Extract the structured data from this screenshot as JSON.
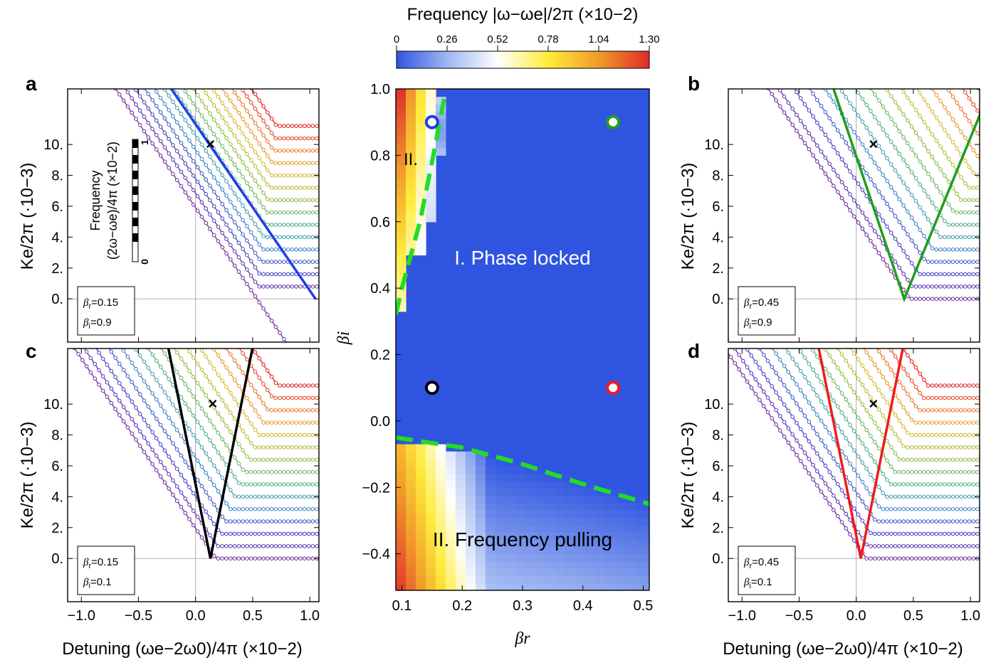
{
  "colorbar": {
    "title": "Frequency |ω−ωe|/2π (×10−2)",
    "ticks": [
      "0",
      "0.26",
      "0.52",
      "0.78",
      "1.04",
      "1.30"
    ],
    "range": [
      0,
      1.3
    ],
    "colors": [
      "#2f55e0",
      "#9fb6f2",
      "#ffffff",
      "#ffec3b",
      "#f09b2a",
      "#e02a2a"
    ]
  },
  "panel_labels": {
    "a": "a",
    "b": "b",
    "c": "c",
    "d": "d"
  },
  "side_axes": {
    "ylabel": "Ke/2π (·10−3)",
    "xlabel": "Detuning (ωe−2ω0)/4π (×10−2)",
    "yticks": [
      "0.",
      "2.",
      "4.",
      "6.",
      "8.",
      "10."
    ],
    "xticks": [
      "−1.0",
      "−0.5",
      "0.0",
      "0.5",
      "1.0"
    ]
  },
  "inner_colorbar": {
    "label_line1": "Frequency",
    "label_line2": "(2ω−ωe)/4π (×10−2)",
    "tick_top": "1",
    "tick_bottom": "0"
  },
  "center_axes": {
    "xlabel": "βr",
    "ylabel": "βi",
    "xticks": [
      "0.1",
      "0.2",
      "0.3",
      "0.4",
      "0.5"
    ],
    "yticks": [
      "−0.4",
      "−0.2",
      "0.0",
      "0.2",
      "0.4",
      "0.6",
      "0.8",
      "1.0"
    ]
  },
  "region_labels": {
    "phase_locked": "I. Phase locked",
    "frequency_pulling": "II. Frequency pulling",
    "region_two": "II."
  },
  "accent_colors": {
    "blue": "#1f3fe6",
    "green": "#1e9e1e",
    "black": "#000000",
    "red": "#ee1c1c",
    "boundary": "#22dd22",
    "phase_locked_fill": "#2f55e0"
  },
  "chart_data": [
    {
      "type": "heatmap",
      "id": "center",
      "title": "Frequency |ω−ωe|/2π",
      "xlabel": "βr",
      "ylabel": "βi",
      "xlim": [
        0.09,
        0.51
      ],
      "ylim": [
        -0.51,
        1.0
      ],
      "markers": [
        {
          "beta_r": 0.15,
          "beta_i": 0.9,
          "color": "#1f3fe6"
        },
        {
          "beta_r": 0.45,
          "beta_i": 0.9,
          "color": "#1e9e1e"
        },
        {
          "beta_r": 0.15,
          "beta_i": 0.1,
          "color": "#000000"
        },
        {
          "beta_r": 0.45,
          "beta_i": 0.1,
          "color": "#ee1c1c"
        }
      ],
      "boundaries": [
        {
          "name": "upper",
          "points": [
            [
              0.09,
              0.32
            ],
            [
              0.1,
              0.4
            ],
            [
              0.13,
              0.6
            ],
            [
              0.15,
              0.78
            ],
            [
              0.17,
              0.97
            ]
          ]
        },
        {
          "name": "lower",
          "points": [
            [
              0.09,
              -0.05
            ],
            [
              0.2,
              -0.08
            ],
            [
              0.3,
              -0.13
            ],
            [
              0.4,
              -0.19
            ],
            [
              0.51,
              -0.25
            ]
          ]
        }
      ]
    },
    {
      "type": "line",
      "id": "a",
      "beta_r": "0.15",
      "beta_i": "0.9",
      "xlim": [
        -1.12,
        1.08
      ],
      "ylim": [
        -2.8,
        13.6
      ],
      "tongue_center": 0.13,
      "left_slope": 0.0,
      "right_slope": -11.0,
      "boundary_tip": 1.05,
      "boundary_color": "#1f3fe6",
      "cross": [
        0.13,
        10.0
      ]
    },
    {
      "type": "line",
      "id": "b",
      "beta_r": "0.45",
      "beta_i": "0.9",
      "xlim": [
        -1.12,
        1.08
      ],
      "ylim": [
        -2.8,
        13.6
      ],
      "tongue_center": 0.42,
      "left_slope": 22.0,
      "right_slope": -18.0,
      "boundary_tip": 0.42,
      "boundary_color": "#1e9e1e",
      "cross": [
        0.15,
        10.0
      ]
    },
    {
      "type": "line",
      "id": "c",
      "beta_r": "0.15",
      "beta_i": "0.1",
      "xlim": [
        -1.12,
        1.08
      ],
      "ylim": [
        -2.8,
        13.6
      ],
      "tongue_center": 0.13,
      "left_slope": 37.0,
      "right_slope": -37.0,
      "boundary_tip": 0.13,
      "boundary_color": "#000000",
      "cross": [
        0.15,
        10.0
      ]
    },
    {
      "type": "line",
      "id": "d",
      "beta_r": "0.45",
      "beta_i": "0.1",
      "xlim": [
        -1.12,
        1.08
      ],
      "ylim": [
        -2.8,
        13.6
      ],
      "tongue_center": 0.04,
      "left_slope": 37.0,
      "right_slope": -37.0,
      "boundary_tip": 0.04,
      "boundary_color": "#ee1c1c",
      "cross": [
        0.15,
        10.0
      ]
    }
  ]
}
